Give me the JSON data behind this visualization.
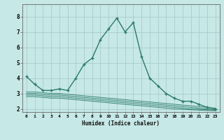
{
  "xlabel": "Humidex (Indice chaleur)",
  "bg_color": "#c6e8e6",
  "grid_color": "#aacccc",
  "line_color": "#2a7a6a",
  "xlim": [
    -0.5,
    23.5
  ],
  "ylim": [
    1.8,
    8.8
  ],
  "yticks": [
    2,
    3,
    4,
    5,
    6,
    7,
    8
  ],
  "xticks": [
    0,
    1,
    2,
    3,
    4,
    5,
    6,
    7,
    8,
    9,
    10,
    11,
    12,
    13,
    14,
    15,
    16,
    17,
    18,
    19,
    20,
    21,
    22,
    23
  ],
  "main_x": [
    0,
    1,
    2,
    3,
    4,
    5,
    6,
    7,
    8,
    9,
    10,
    11,
    12,
    13,
    14,
    15,
    16,
    17,
    18,
    19,
    20,
    21,
    22,
    23
  ],
  "main_y": [
    4.1,
    3.6,
    3.2,
    3.2,
    3.3,
    3.2,
    4.0,
    4.9,
    5.3,
    6.5,
    7.2,
    7.9,
    7.0,
    7.6,
    5.4,
    4.0,
    3.5,
    3.0,
    2.7,
    2.5,
    2.5,
    2.3,
    2.1,
    2.0
  ],
  "flat_lines": [
    {
      "x": [
        0,
        1,
        2,
        3,
        4,
        5,
        6,
        7,
        8,
        9,
        10,
        11,
        12,
        13,
        14,
        15,
        16,
        17,
        18,
        19,
        20,
        21,
        22,
        23
      ],
      "y": [
        3.1,
        3.1,
        3.05,
        3.0,
        3.0,
        2.95,
        2.9,
        2.85,
        2.8,
        2.75,
        2.7,
        2.65,
        2.6,
        2.55,
        2.5,
        2.45,
        2.4,
        2.35,
        2.3,
        2.25,
        2.2,
        2.15,
        2.1,
        2.05
      ]
    },
    {
      "x": [
        0,
        1,
        2,
        3,
        4,
        5,
        6,
        7,
        8,
        9,
        10,
        11,
        12,
        13,
        14,
        15,
        16,
        17,
        18,
        19,
        20,
        21,
        22,
        23
      ],
      "y": [
        3.0,
        3.0,
        2.95,
        2.9,
        2.9,
        2.85,
        2.8,
        2.75,
        2.7,
        2.65,
        2.6,
        2.55,
        2.5,
        2.45,
        2.4,
        2.35,
        2.3,
        2.25,
        2.2,
        2.15,
        2.1,
        2.05,
        2.0,
        1.95
      ]
    },
    {
      "x": [
        0,
        1,
        2,
        3,
        4,
        5,
        6,
        7,
        8,
        9,
        10,
        11,
        12,
        13,
        14,
        15,
        16,
        17,
        18,
        19,
        20,
        21,
        22,
        23
      ],
      "y": [
        2.9,
        2.9,
        2.85,
        2.8,
        2.8,
        2.75,
        2.7,
        2.65,
        2.6,
        2.55,
        2.5,
        2.45,
        2.4,
        2.35,
        2.3,
        2.25,
        2.2,
        2.15,
        2.1,
        2.05,
        2.0,
        1.98,
        1.95,
        1.92
      ]
    },
    {
      "x": [
        0,
        1,
        2,
        3,
        4,
        5,
        6,
        7,
        8,
        9,
        10,
        11,
        12,
        13,
        14,
        15,
        16,
        17,
        18,
        19,
        20,
        21,
        22,
        23
      ],
      "y": [
        2.8,
        2.8,
        2.75,
        2.7,
        2.7,
        2.65,
        2.6,
        2.55,
        2.5,
        2.45,
        2.4,
        2.35,
        2.3,
        2.25,
        2.2,
        2.15,
        2.1,
        2.05,
        2.0,
        1.98,
        1.95,
        1.92,
        1.9,
        1.88
      ]
    }
  ]
}
